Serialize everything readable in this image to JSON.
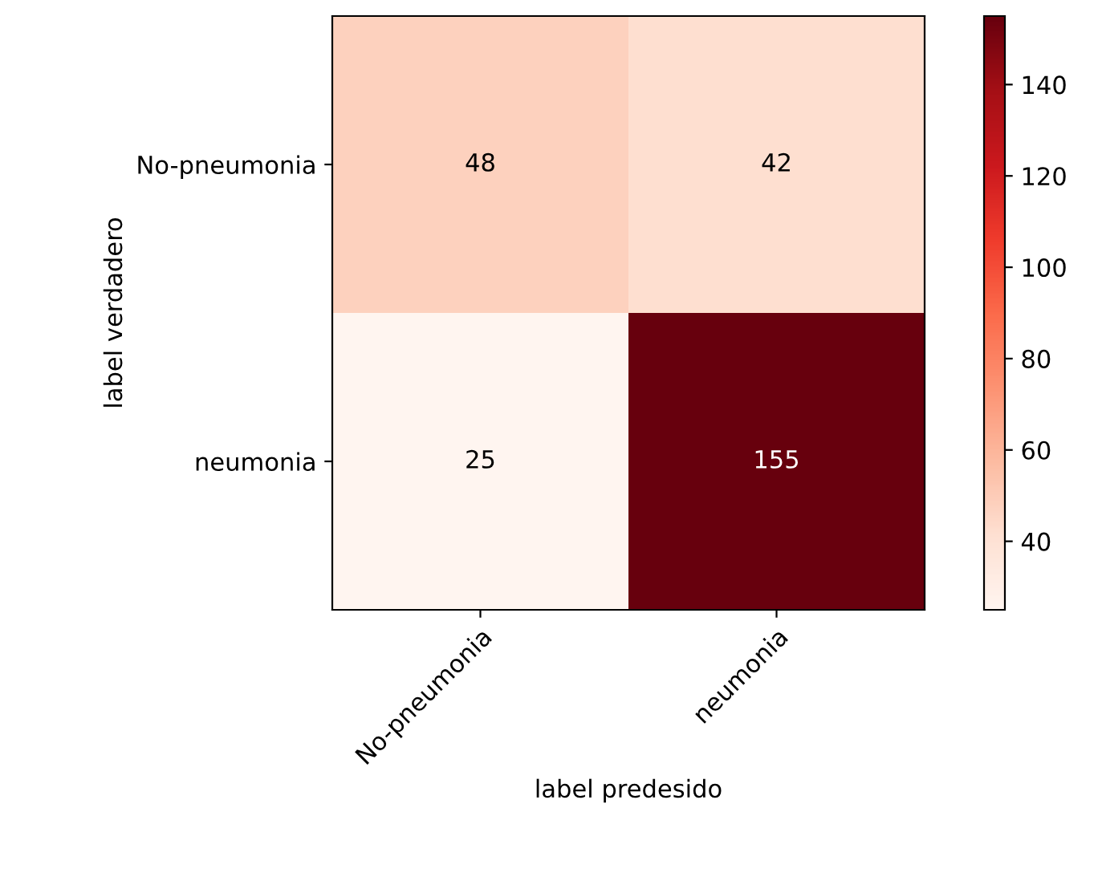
{
  "chart_data": {
    "type": "heatmap",
    "xlabel": "label predesido",
    "ylabel": "label verdadero",
    "categories": [
      "No-pneumonia",
      "neumonia"
    ],
    "y_categories": [
      "No-pneumonia",
      "neumonia"
    ],
    "cells": [
      [
        48,
        42
      ],
      [
        25,
        155
      ]
    ],
    "clim": [
      25,
      155
    ],
    "cticks": [
      40,
      60,
      80,
      100,
      120,
      140
    ],
    "data_labels": true,
    "grid": false
  }
}
